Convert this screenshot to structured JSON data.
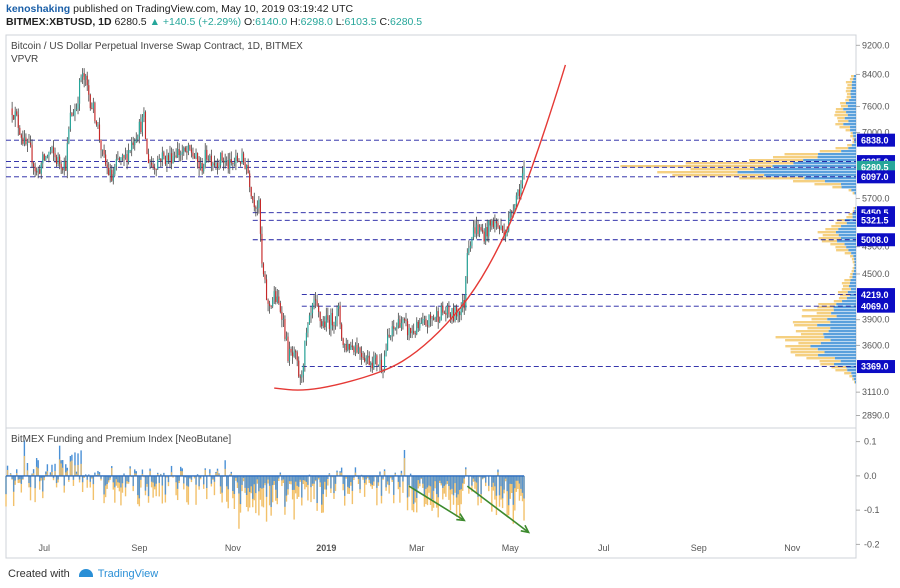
{
  "header": {
    "author": "kenoshaking",
    "published": "published on TradingView.com, May 10, 2019 03:19:42 UTC",
    "symbol": "BITMEX:XBTUSD, 1D",
    "last": "6280.5",
    "change": "▲ +140.5 (+2.29%)",
    "o_label": "O:",
    "o_value": "6140.0",
    "h_label": "H:",
    "h_value": "6298.0",
    "l_label": "L:",
    "l_value": "6103.5",
    "c_label": "C:",
    "c_value": "6280.5"
  },
  "footer": {
    "created_with": "Created with",
    "brand": "TradingView"
  },
  "colors": {
    "up": "#26a69a",
    "down": "#c62828",
    "wick": "#444444",
    "hline": "#1a1aa0",
    "curve": "#e53935",
    "vol_buy": "#3d8fd6",
    "vol_sell": "#f3c86b",
    "fund_pos": "#4a90d6",
    "fund_neg": "#f2c16b",
    "arrow": "#3c8a2e",
    "label_bg": "#0c0cc4"
  },
  "chart_data": [
    {
      "type": "candlestick",
      "title": "Bitcoin / US Dollar Perpetual Inverse Swap Contract, 1D, BITMEX",
      "subtitle": "VPVR",
      "x_tick_labels": [
        "Jul",
        "Sep",
        "Nov",
        "2019",
        "Mar",
        "May",
        "Jul",
        "Sep",
        "Nov"
      ],
      "y_tick_labels": [
        "9200.0",
        "8400.0",
        "7600.0",
        "7000.0",
        "5700.0",
        "4900.0",
        "4500.0",
        "3900.0",
        "3600.0",
        "3110.0",
        "2890.0"
      ],
      "y_scale": "log",
      "ylim": [
        2780,
        9500
      ],
      "price_levels": [
        "6838.0",
        "6395.0",
        "6280.5",
        "6097.0",
        "5450.5",
        "5321.5",
        "5008.0",
        "4219.0",
        "4069.0",
        "3369.0"
      ],
      "close_path": [
        [
          "2018-06-10",
          7550
        ],
        [
          "2018-06-13",
          7300
        ],
        [
          "2018-06-18",
          6750
        ],
        [
          "2018-06-22",
          6600
        ],
        [
          "2018-06-26",
          6150
        ],
        [
          "2018-06-30",
          6400
        ],
        [
          "2018-07-05",
          6600
        ],
        [
          "2018-07-10",
          6400
        ],
        [
          "2018-07-15",
          6350
        ],
        [
          "2018-07-18",
          7350
        ],
        [
          "2018-07-22",
          7600
        ],
        [
          "2018-07-25",
          8350
        ],
        [
          "2018-07-28",
          8200
        ],
        [
          "2018-07-31",
          7750
        ],
        [
          "2018-08-04",
          7300
        ],
        [
          "2018-08-08",
          6500
        ],
        [
          "2018-08-11",
          6250
        ],
        [
          "2018-08-14",
          6050
        ],
        [
          "2018-08-18",
          6400
        ],
        [
          "2018-08-22",
          6400
        ],
        [
          "2018-08-26",
          6700
        ],
        [
          "2018-08-30",
          7000
        ],
        [
          "2018-09-04",
          7300
        ],
        [
          "2018-09-06",
          6500
        ],
        [
          "2018-09-10",
          6300
        ],
        [
          "2018-09-15",
          6500
        ],
        [
          "2018-09-20",
          6450
        ],
        [
          "2018-09-25",
          6600
        ],
        [
          "2018-10-01",
          6550
        ],
        [
          "2018-10-05",
          6600
        ],
        [
          "2018-10-11",
          6250
        ],
        [
          "2018-10-15",
          6550
        ],
        [
          "2018-10-20",
          6400
        ],
        [
          "2018-10-25",
          6450
        ],
        [
          "2018-10-30",
          6300
        ],
        [
          "2018-11-05",
          6450
        ],
        [
          "2018-11-10",
          6350
        ],
        [
          "2018-11-14",
          5700
        ],
        [
          "2018-11-18",
          5550
        ],
        [
          "2018-11-20",
          4600
        ],
        [
          "2018-11-24",
          4050
        ],
        [
          "2018-11-28",
          4200
        ],
        [
          "2018-12-03",
          4000
        ],
        [
          "2018-12-07",
          3500
        ],
        [
          "2018-12-12",
          3450
        ],
        [
          "2018-12-15",
          3200
        ],
        [
          "2018-12-19",
          3700
        ],
        [
          "2018-12-24",
          4100
        ],
        [
          "2018-12-29",
          3850
        ],
        [
          "2019-01-05",
          3900
        ],
        [
          "2019-01-09",
          4000
        ],
        [
          "2019-01-12",
          3600
        ],
        [
          "2019-01-20",
          3600
        ],
        [
          "2019-01-28",
          3450
        ],
        [
          "2019-02-07",
          3400
        ],
        [
          "2019-02-10",
          3650
        ],
        [
          "2019-02-18",
          3900
        ],
        [
          "2019-02-24",
          3750
        ],
        [
          "2019-03-03",
          3800
        ],
        [
          "2019-03-10",
          3900
        ],
        [
          "2019-03-17",
          4000
        ],
        [
          "2019-03-25",
          3950
        ],
        [
          "2019-04-01",
          4100
        ],
        [
          "2019-04-03",
          4900
        ],
        [
          "2019-04-08",
          5200
        ],
        [
          "2019-04-14",
          5100
        ],
        [
          "2019-04-20",
          5300
        ],
        [
          "2019-04-26",
          5150
        ],
        [
          "2019-04-29",
          5200
        ],
        [
          "2019-05-04",
          5700
        ],
        [
          "2019-05-08",
          5950
        ],
        [
          "2019-05-10",
          6280
        ]
      ],
      "parabola": [
        [
          "2018-11-28",
          3150
        ],
        [
          "2018-12-16",
          3120
        ],
        [
          "2019-01-09",
          3180
        ],
        [
          "2019-02-10",
          3330
        ],
        [
          "2019-03-01",
          3520
        ],
        [
          "2019-03-20",
          3830
        ],
        [
          "2019-04-08",
          4280
        ],
        [
          "2019-04-25",
          4950
        ],
        [
          "2019-05-08",
          5700
        ],
        [
          "2019-05-21",
          6800
        ],
        [
          "2019-06-01",
          8000
        ],
        [
          "2019-06-06",
          8650
        ]
      ]
    },
    {
      "type": "bar",
      "title": "BitMEX Funding and Premium Index [NeoButane]",
      "y_tick_labels": [
        "0.1",
        "0.0",
        "-0.1",
        "-0.2"
      ],
      "ylim": [
        -0.24,
        0.14
      ],
      "arrows": [
        [
          [
            "2019-02-24",
            -0.03
          ],
          [
            "2019-04-01",
            -0.13
          ]
        ],
        [
          [
            "2019-04-03",
            -0.03
          ],
          [
            "2019-05-13",
            -0.165
          ]
        ]
      ]
    }
  ]
}
